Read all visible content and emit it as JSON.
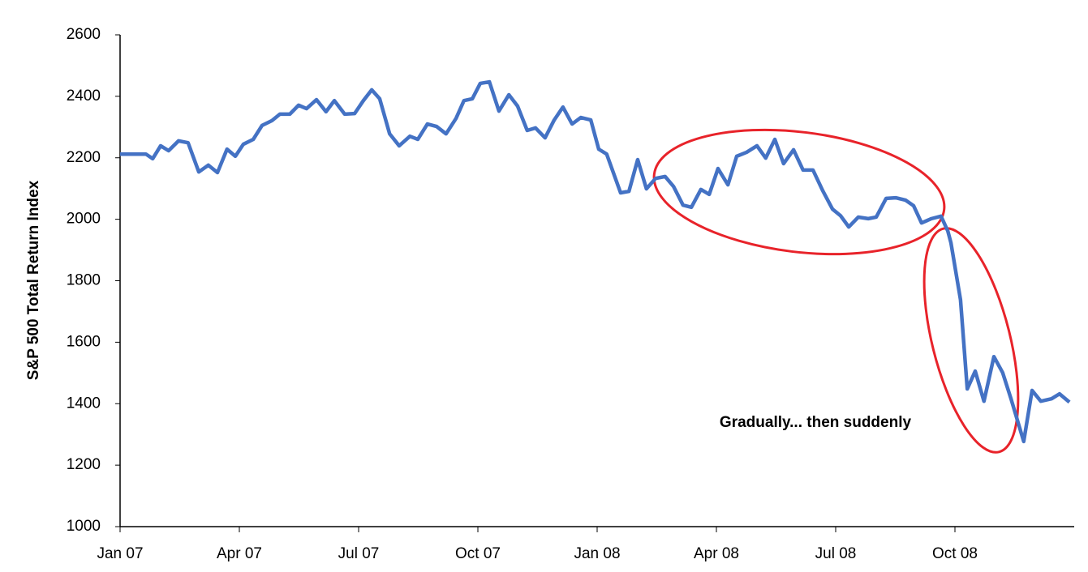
{
  "chart_data": {
    "type": "line",
    "y_label": "S&P 500 Total Return Index",
    "annotation": "Gradually... then suddenly",
    "x": [
      0,
      0.65,
      0.82,
      1.02,
      1.22,
      1.47,
      1.71,
      1.98,
      2.22,
      2.45,
      2.69,
      2.9,
      3.1,
      3.35,
      3.57,
      3.82,
      4.02,
      4.27,
      4.49,
      4.69,
      4.94,
      5.18,
      5.39,
      5.65,
      5.9,
      6.12,
      6.33,
      6.53,
      6.78,
      7.02,
      7.29,
      7.49,
      7.73,
      7.96,
      8.2,
      8.45,
      8.65,
      8.86,
      9.06,
      9.29,
      9.53,
      9.78,
      10,
      10.24,
      10.45,
      10.69,
      10.92,
      11.14,
      11.37,
      11.59,
      11.84,
      12.04,
      12.24,
      12.59,
      12.8,
      13.02,
      13.24,
      13.47,
      13.71,
      13.92,
      14.16,
      14.37,
      14.61,
      14.82,
      15.04,
      15.29,
      15.51,
      15.76,
      16.02,
      16.24,
      16.47,
      16.69,
      16.94,
      17.18,
      17.43,
      17.67,
      17.92,
      18.12,
      18.33,
      18.57,
      18.82,
      19.02,
      19.27,
      19.51,
      19.76,
      19.96,
      20.16,
      20.41,
      20.65,
      20.82,
      20.9,
      21.14,
      21.31,
      21.51,
      21.73,
      21.98,
      22.2,
      22.41,
      22.73,
      22.94,
      23.16,
      23.43,
      23.63,
      23.88
    ],
    "series": [
      {
        "color": "#4472c4",
        "values": [
          2212,
          2212,
          2197,
          2239,
          2223,
          2255,
          2249,
          2154,
          2176,
          2152,
          2228,
          2205,
          2244,
          2260,
          2305,
          2321,
          2342,
          2342,
          2371,
          2360,
          2389,
          2350,
          2386,
          2342,
          2344,
          2386,
          2421,
          2392,
          2278,
          2239,
          2270,
          2260,
          2310,
          2302,
          2278,
          2328,
          2386,
          2392,
          2442,
          2447,
          2352,
          2405,
          2368,
          2289,
          2297,
          2265,
          2323,
          2365,
          2310,
          2331,
          2323,
          2228,
          2212,
          2086,
          2091,
          2194,
          2099,
          2133,
          2139,
          2107,
          2046,
          2039,
          2097,
          2081,
          2165,
          2112,
          2205,
          2218,
          2239,
          2199,
          2260,
          2181,
          2226,
          2160,
          2160,
          2094,
          2033,
          2012,
          1975,
          2007,
          2002,
          2007,
          2068,
          2070,
          2062,
          2044,
          1988,
          2002,
          2010,
          1962,
          1923,
          1738,
          1448,
          1506,
          1408,
          1553,
          1501,
          1416,
          1277,
          1443,
          1408,
          1416,
          1432,
          1405
        ]
      }
    ],
    "xlim": [
      0,
      24
    ],
    "xticks": [
      {
        "value": 0,
        "label": "Jan 07"
      },
      {
        "value": 3,
        "label": "Apr 07"
      },
      {
        "value": 6,
        "label": "Jul 07"
      },
      {
        "value": 9,
        "label": "Oct 07"
      },
      {
        "value": 12,
        "label": "Jan 08"
      },
      {
        "value": 15,
        "label": "Apr 08"
      },
      {
        "value": 18,
        "label": "Jul 08"
      },
      {
        "value": 21,
        "label": "Oct 08"
      }
    ],
    "ylim": [
      1000,
      2600
    ],
    "yticks": [
      1000,
      1200,
      1400,
      1600,
      1800,
      2000,
      2200,
      2400,
      2600
    ],
    "grid": false
  }
}
